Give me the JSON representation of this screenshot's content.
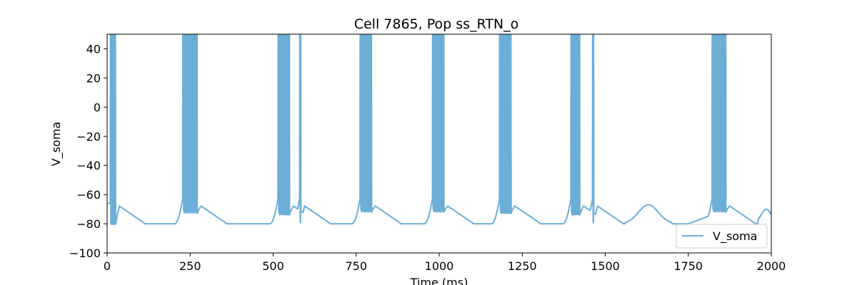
{
  "chart_data": {
    "type": "line",
    "title": "Cell 7865, Pop ss_RTN_o",
    "xlabel": "Time (ms)",
    "ylabel": "V_soma",
    "xlim": [
      0,
      2000
    ],
    "ylim": [
      -100,
      50
    ],
    "xticks": [
      0,
      250,
      500,
      750,
      1000,
      1250,
      1500,
      1750,
      2000
    ],
    "yticks": [
      -100,
      -80,
      -60,
      -40,
      -20,
      0,
      20,
      40
    ],
    "legend_position": "lower right",
    "grid": false,
    "series": [
      {
        "name": "V_soma",
        "color": "#6baed6",
        "bursts": [
          {
            "t": [
              10,
              24
            ],
            "min": -81
          },
          {
            "t": [
              228,
              270
            ],
            "min": -73
          },
          {
            "t": [
              515,
              548
            ],
            "min": -74
          },
          {
            "t": [
              580,
              582
            ],
            "min": -80
          },
          {
            "t": [
              762,
              795
            ],
            "min": -72
          },
          {
            "t": [
              980,
              1013
            ],
            "min": -72
          },
          {
            "t": [
              1182,
              1215
            ],
            "min": -73
          },
          {
            "t": [
              1397,
              1422
            ],
            "min": -74
          },
          {
            "t": [
              1462,
              1464
            ],
            "min": -80
          },
          {
            "t": [
              1822,
              1862
            ],
            "min": -72
          }
        ],
        "baseline": -80,
        "afterhyperpolarization": -66
      }
    ]
  }
}
